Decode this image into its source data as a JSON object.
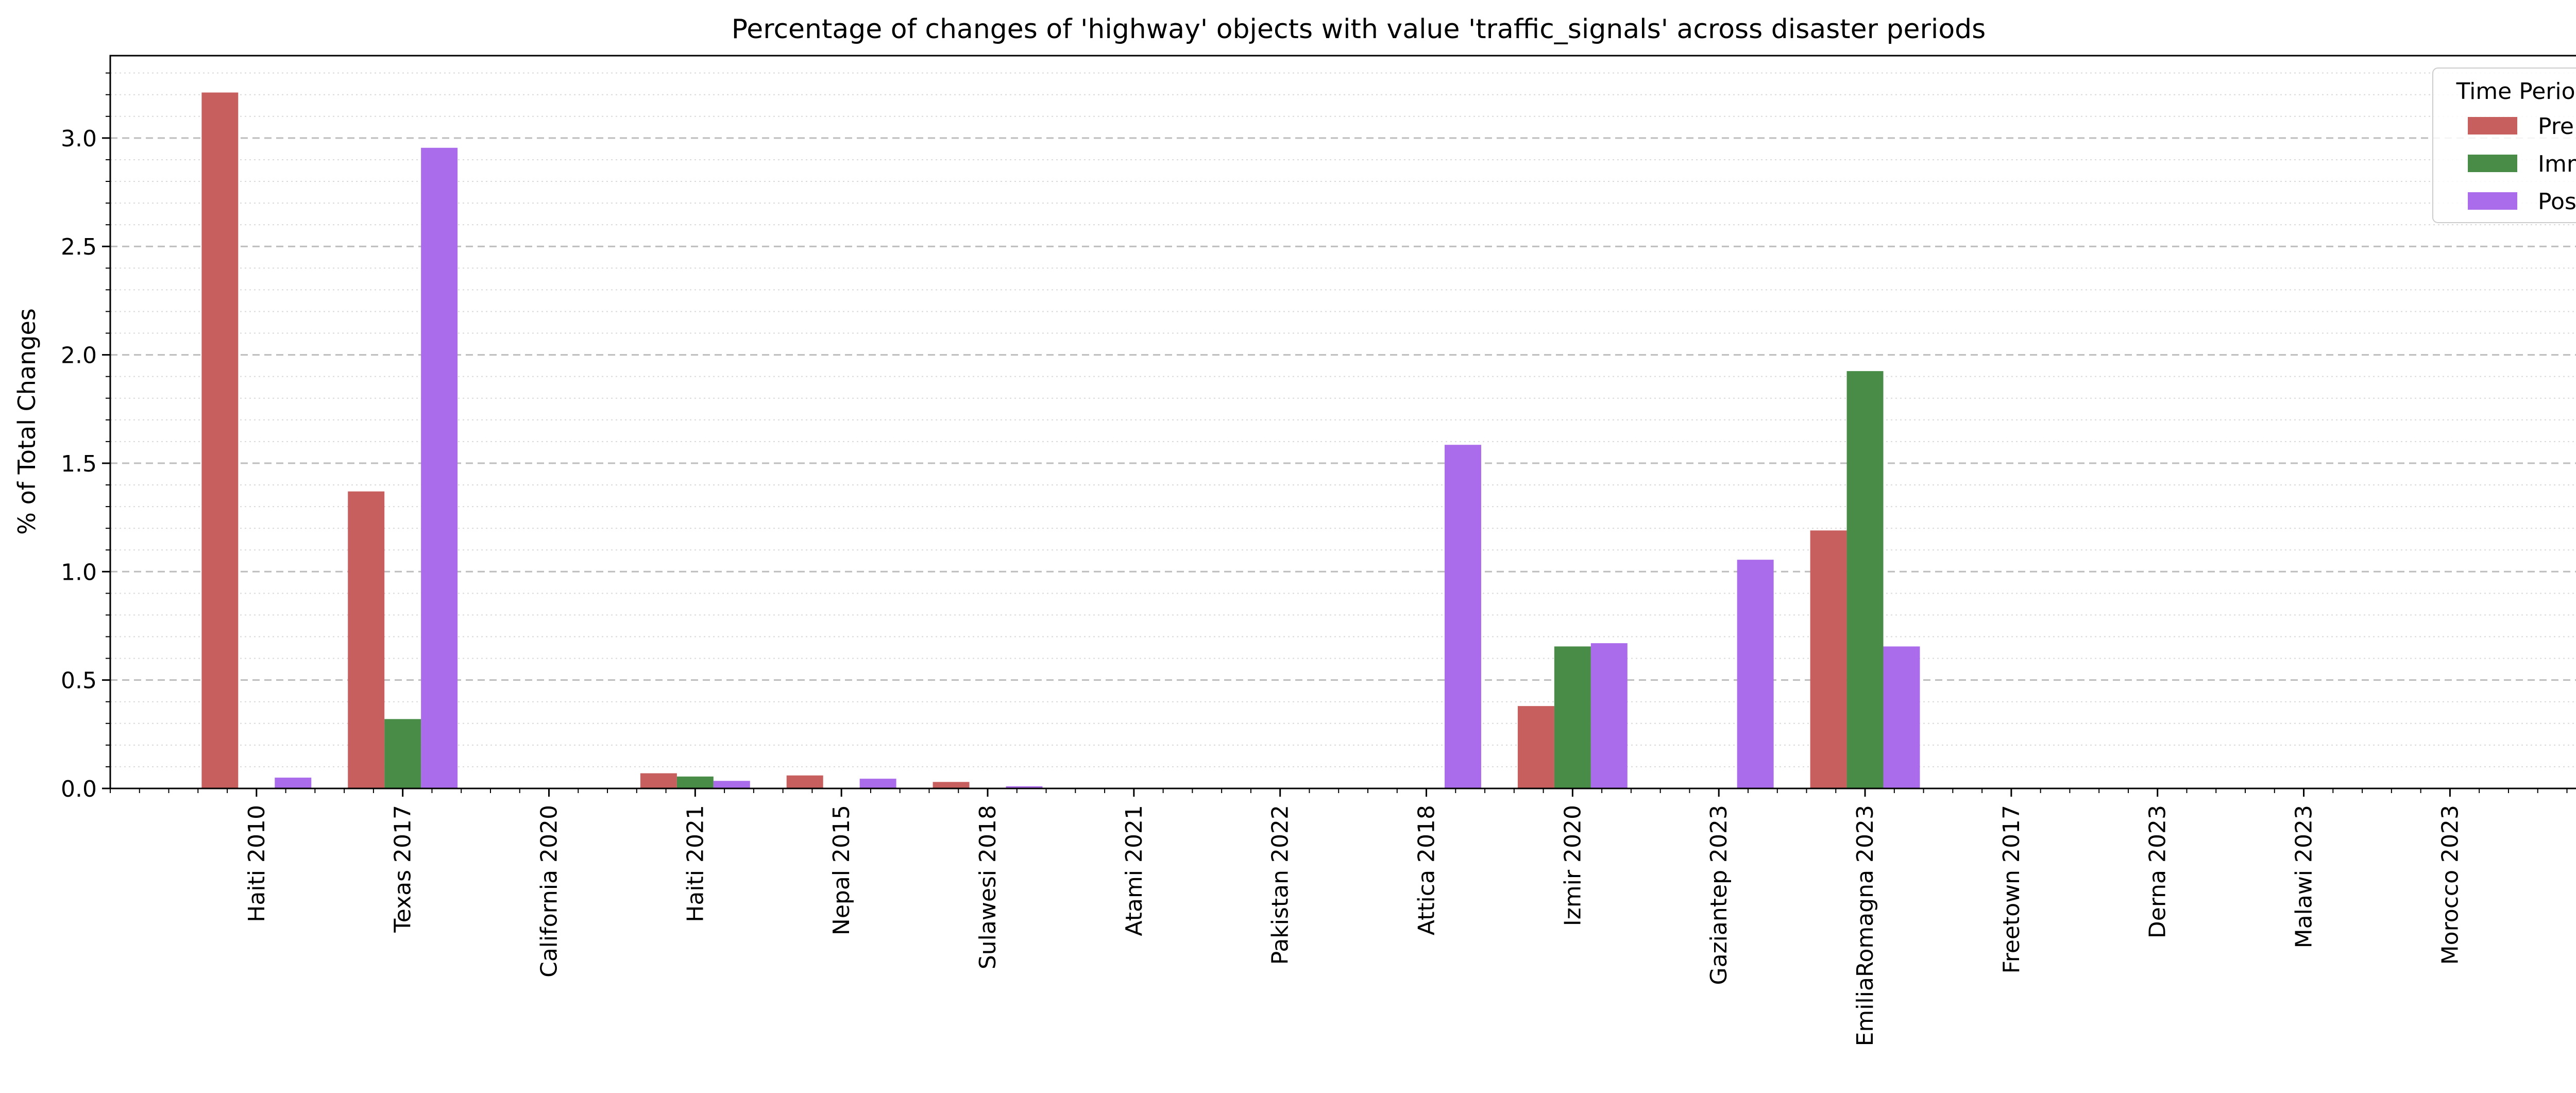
{
  "chart_data": {
    "type": "bar",
    "title": "Percentage of changes of 'highway' objects with value 'traffic_signals' across disaster periods",
    "xlabel": "",
    "ylabel": "% of Total Changes",
    "categories": [
      "Haiti 2010",
      "Texas 2017",
      "California 2020",
      "Haiti 2021",
      "Nepal 2015",
      "Sulawesi 2018",
      "Atami 2021",
      "Pakistan 2022",
      "Attica 2018",
      "Izmir 2020",
      "Gaziantep 2023",
      "EmiliaRomagna 2023",
      "Freetown 2017",
      "Derna 2023",
      "Malawi 2023",
      "Morocco 2023"
    ],
    "series": [
      {
        "name": "Pre",
        "color": "#c75f5f",
        "values": [
          3.21,
          1.37,
          0,
          0.07,
          0.06,
          0.03,
          0,
          0,
          0,
          0.38,
          0,
          1.19,
          0,
          0,
          0,
          0
        ]
      },
      {
        "name": "Imm",
        "color": "#488c48",
        "values": [
          0,
          0.32,
          0,
          0.055,
          0,
          0,
          0,
          0,
          0,
          0.655,
          0,
          1.925,
          0,
          0,
          0,
          0
        ]
      },
      {
        "name": "Post",
        "color": "#ab6ceb",
        "values": [
          0.05,
          2.955,
          0,
          0.035,
          0.045,
          0.01,
          0,
          0,
          1.585,
          0.67,
          1.055,
          0.655,
          0,
          0,
          0,
          0
        ]
      }
    ],
    "ylim": [
      0,
      3.38
    ],
    "yticks": [
      0.0,
      0.5,
      1.0,
      1.5,
      2.0,
      2.5,
      3.0
    ],
    "legend": {
      "title": "Time Period",
      "position": "top-right"
    },
    "grid": {
      "y_major": true,
      "y_minor": true,
      "style": "dashed"
    }
  }
}
